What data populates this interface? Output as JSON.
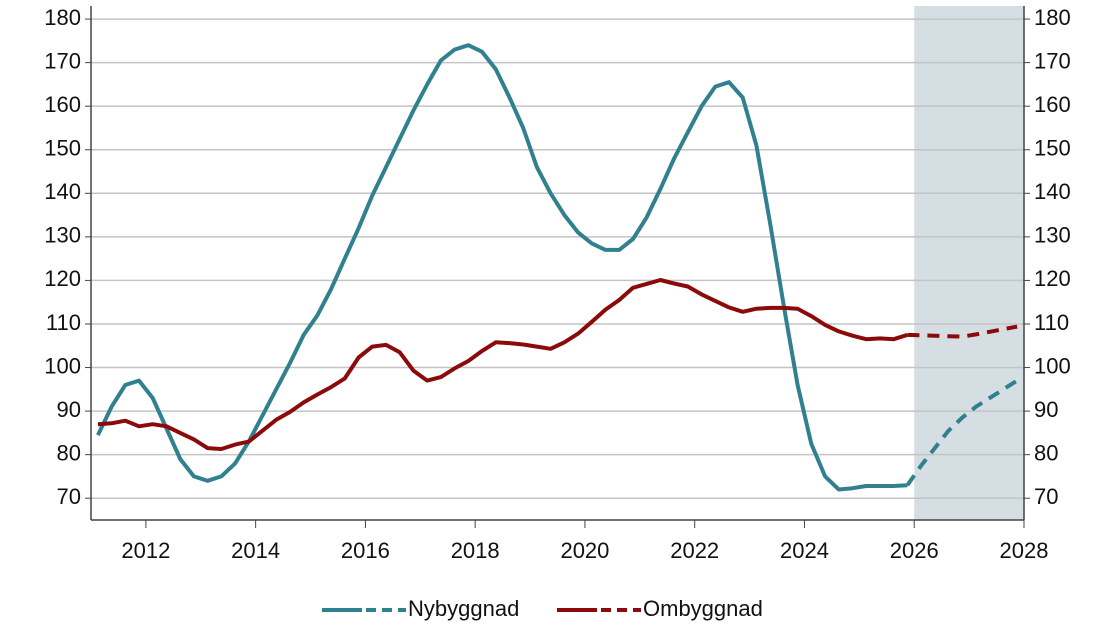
{
  "chart_data": {
    "type": "line",
    "x": [
      2011.125,
      2011.375,
      2011.625,
      2011.875,
      2012.125,
      2012.375,
      2012.625,
      2012.875,
      2013.125,
      2013.375,
      2013.625,
      2013.875,
      2014.125,
      2014.375,
      2014.625,
      2014.875,
      2015.125,
      2015.375,
      2015.625,
      2015.875,
      2016.125,
      2016.375,
      2016.625,
      2016.875,
      2017.125,
      2017.375,
      2017.625,
      2017.875,
      2018.125,
      2018.375,
      2018.625,
      2018.875,
      2019.125,
      2019.375,
      2019.625,
      2019.875,
      2020.125,
      2020.375,
      2020.625,
      2020.875,
      2021.125,
      2021.375,
      2021.625,
      2021.875,
      2022.125,
      2022.375,
      2022.625,
      2022.875,
      2023.125,
      2023.375,
      2023.625,
      2023.875,
      2024.125,
      2024.375,
      2024.625,
      2024.875,
      2025.125,
      2025.375,
      2025.625,
      2025.875,
      2026.125,
      2026.375,
      2026.625,
      2026.875,
      2027.125,
      2027.375,
      2027.625,
      2027.875
    ],
    "series": [
      {
        "name": "Nybyggnad",
        "color": "#31808f",
        "values": [
          84.5,
          91,
          96,
          97,
          93,
          86,
          79,
          75,
          74,
          75,
          78,
          83,
          89,
          95,
          101,
          107.5,
          112,
          118,
          125,
          132,
          139.5,
          146,
          152.5,
          159,
          165,
          170.5,
          173,
          174,
          172.5,
          168.5,
          162,
          155,
          146,
          140,
          135,
          131,
          128.5,
          127,
          127,
          129.5,
          134.5,
          141,
          148,
          154,
          160,
          164.5,
          165.5,
          162,
          151,
          133,
          114,
          96,
          82.5,
          75,
          72,
          72.3,
          72.8,
          72.8,
          72.8,
          73,
          77.5,
          81.5,
          85.5,
          88.5,
          91,
          93,
          95,
          97
        ]
      },
      {
        "name": "Ombyggnad",
        "color": "#8b0a0a",
        "values": [
          87,
          87.2,
          87.8,
          86.5,
          87,
          86.5,
          85,
          83.5,
          81.5,
          81.3,
          82.3,
          83,
          85.5,
          88,
          89.8,
          92,
          93.8,
          95.5,
          97.5,
          102.3,
          104.8,
          105.2,
          103.5,
          99.3,
          97,
          97.8,
          99.8,
          101.5,
          103.8,
          105.8,
          105.6,
          105.3,
          104.8,
          104.3,
          105.8,
          107.8,
          110.5,
          113.3,
          115.5,
          118.3,
          119.2,
          120.1,
          119.3,
          118.6,
          116.8,
          115.3,
          113.8,
          112.8,
          113.5,
          113.7,
          113.7,
          113.5,
          111.8,
          109.8,
          108.3,
          107.3,
          106.5,
          106.7,
          106.5,
          107.5,
          107.4,
          107.3,
          107.2,
          107.1,
          107.6,
          108.2,
          108.8,
          109.4
        ]
      }
    ],
    "forecast_from": 2026,
    "shade_color": "#d5dee3",
    "xlim": [
      2011,
      2028
    ],
    "xticks": [
      2012,
      2014,
      2016,
      2018,
      2020,
      2022,
      2024,
      2026,
      2028
    ],
    "ylim": [
      65,
      183
    ],
    "yticks": [
      70,
      80,
      90,
      100,
      110,
      120,
      130,
      140,
      150,
      160,
      170,
      180
    ],
    "grid": true,
    "legend": "bottom"
  }
}
